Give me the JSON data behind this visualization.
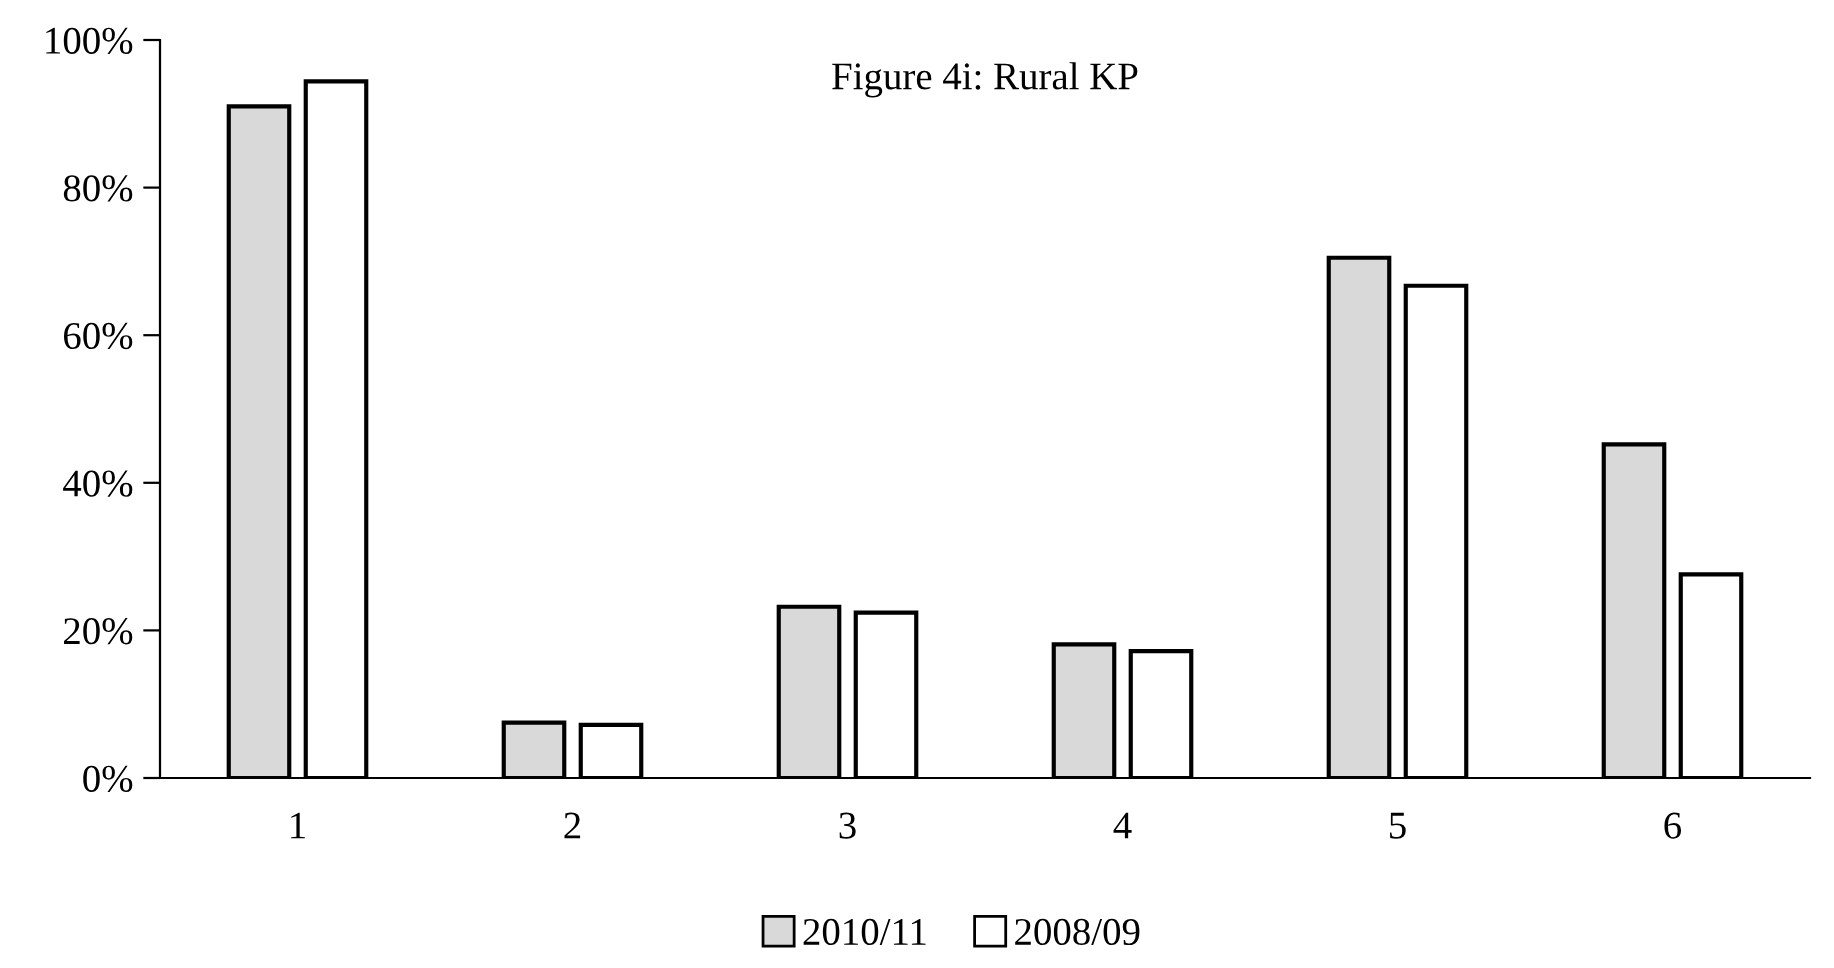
{
  "chart_data": {
    "type": "bar",
    "title": "Figure 4i: Rural KP",
    "categories": [
      "1",
      "2",
      "3",
      "4",
      "5",
      "6"
    ],
    "series": [
      {
        "name": "2010/11",
        "color": "#d9d9d9",
        "values": [
          91,
          7.5,
          23.2,
          18.1,
          70.5,
          45.2
        ]
      },
      {
        "name": "2008/09",
        "color": "#ffffff",
        "values": [
          94.4,
          7.2,
          22.4,
          17.2,
          66.7,
          27.6
        ]
      }
    ],
    "ylim": [
      0,
      100
    ],
    "yticks": [
      {
        "value": 0,
        "label": "0%"
      },
      {
        "value": 20,
        "label": "20%"
      },
      {
        "value": 40,
        "label": "40%"
      },
      {
        "value": 60,
        "label": "60%"
      },
      {
        "value": 80,
        "label": "80%"
      },
      {
        "value": 100,
        "label": "100%"
      }
    ],
    "grid": false,
    "legend": "bottom"
  }
}
